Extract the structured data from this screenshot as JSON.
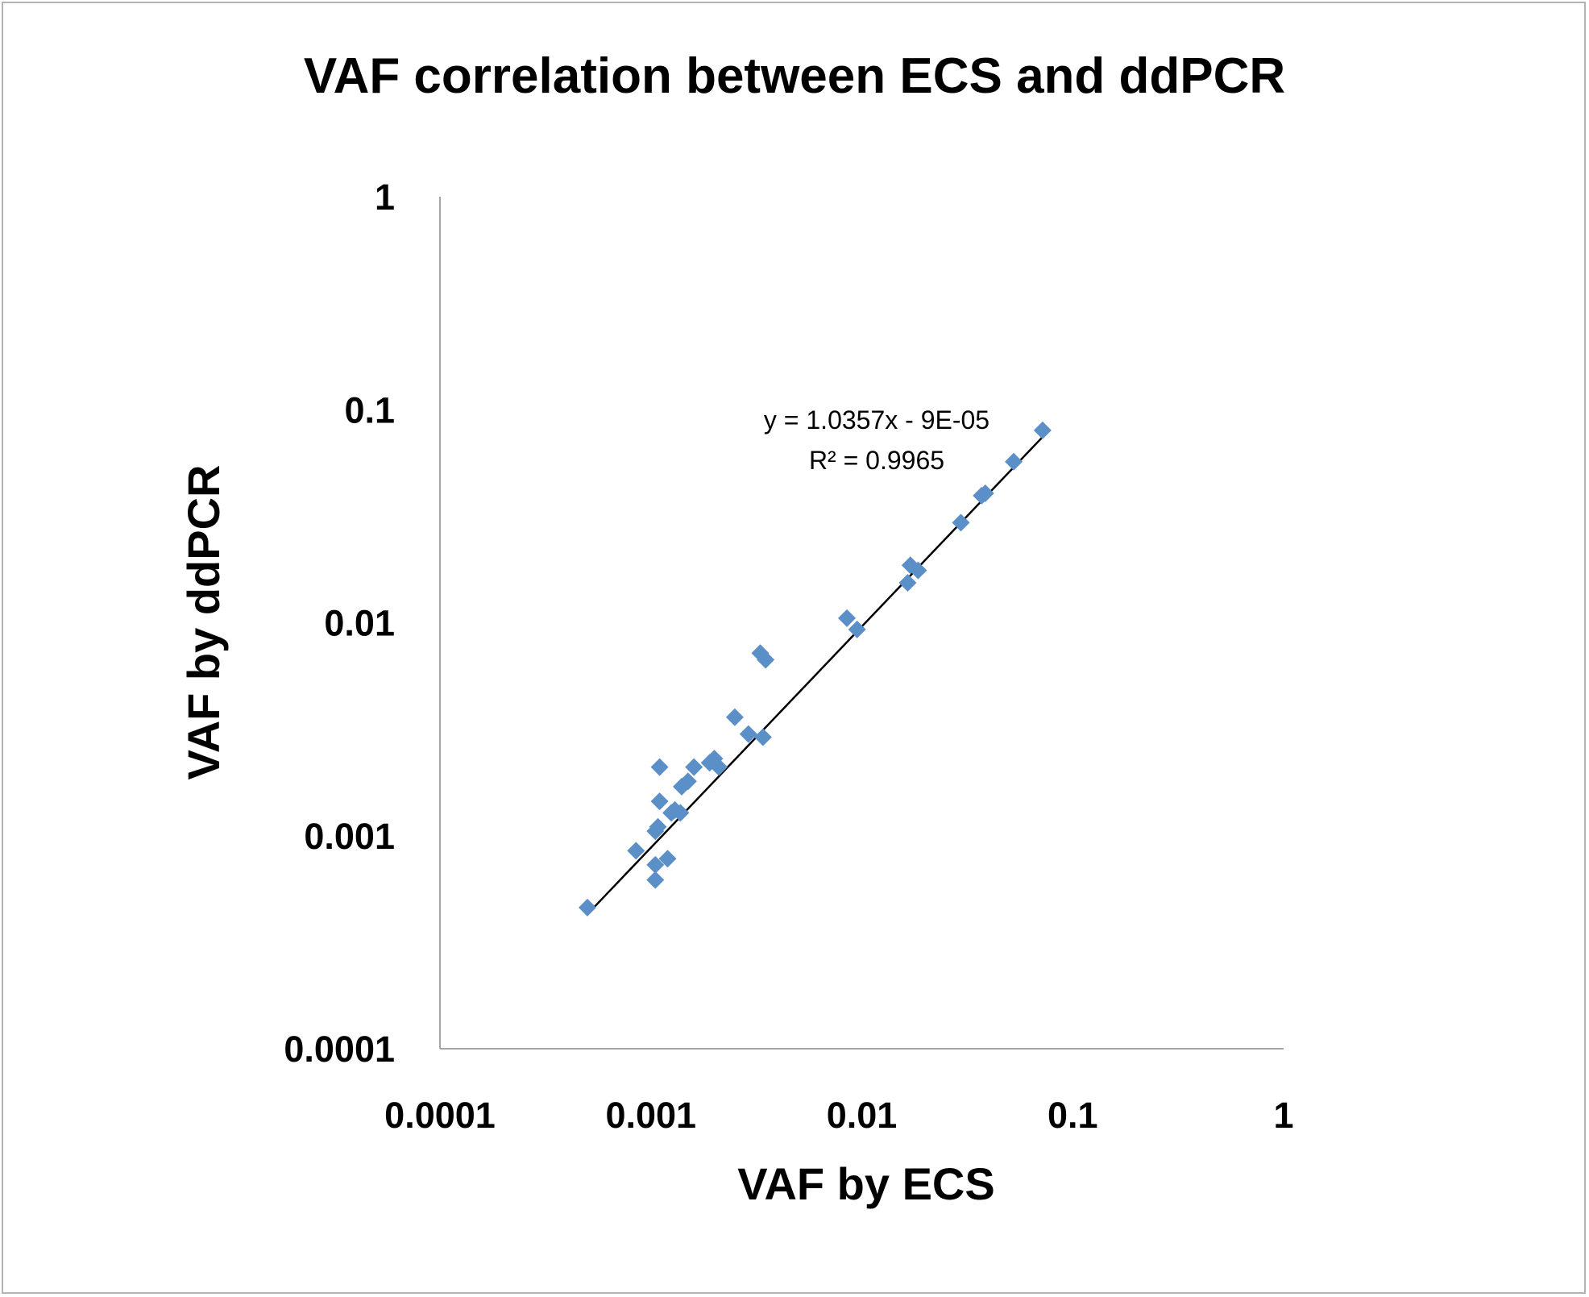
{
  "chart_data": {
    "type": "scatter",
    "title": "VAF correlation between ECS and ddPCR",
    "xlabel": "VAF by ECS",
    "ylabel": "VAF by ddPCR",
    "xscale": "log",
    "yscale": "log",
    "xlim": [
      0.0001,
      1
    ],
    "ylim": [
      0.0001,
      1
    ],
    "x_ticks": [
      0.0001,
      0.001,
      0.01,
      0.1,
      1
    ],
    "x_tick_labels": [
      "0.0001",
      "0.001",
      "0.01",
      "0.1",
      "1"
    ],
    "y_ticks": [
      0.0001,
      0.001,
      0.01,
      0.1,
      1
    ],
    "y_tick_labels": [
      "0.0001",
      "0.001",
      "0.01",
      "0.1",
      "1"
    ],
    "grid": false,
    "marker": "diamond",
    "marker_color": "#5b8fc7",
    "series": [
      {
        "name": "VAF",
        "points": [
          [
            0.0005,
            0.00046
          ],
          [
            0.00085,
            0.00085
          ],
          [
            0.00105,
            0.00062
          ],
          [
            0.00105,
            0.00073
          ],
          [
            0.0012,
            0.00078
          ],
          [
            0.00105,
            0.00105
          ],
          [
            0.00108,
            0.0011
          ],
          [
            0.00125,
            0.00128
          ],
          [
            0.0013,
            0.00132
          ],
          [
            0.00138,
            0.00128
          ],
          [
            0.0011,
            0.00145
          ],
          [
            0.0014,
            0.0017
          ],
          [
            0.0015,
            0.0018
          ],
          [
            0.0016,
            0.0021
          ],
          [
            0.0011,
            0.0021
          ],
          [
            0.0019,
            0.0022
          ],
          [
            0.002,
            0.0023
          ],
          [
            0.0021,
            0.0021
          ],
          [
            0.0025,
            0.0036
          ],
          [
            0.0029,
            0.003
          ],
          [
            0.0034,
            0.0029
          ],
          [
            0.0033,
            0.0072
          ],
          [
            0.0035,
            0.0067
          ],
          [
            0.0085,
            0.0105
          ],
          [
            0.0095,
            0.0093
          ],
          [
            0.0165,
            0.0154
          ],
          [
            0.017,
            0.0186
          ],
          [
            0.0185,
            0.0176
          ],
          [
            0.0295,
            0.0295
          ],
          [
            0.037,
            0.0395
          ],
          [
            0.0385,
            0.0405
          ],
          [
            0.0525,
            0.057
          ],
          [
            0.072,
            0.08
          ]
        ]
      }
    ],
    "trendline": {
      "type": "linear",
      "slope": 1.0357,
      "intercept": -9e-05,
      "x_range": [
        0.0005,
        0.072
      ],
      "color": "#000000",
      "equation_text": "y = 1.0357x - 9E-05",
      "r2_text": "R² = 0.9965"
    }
  }
}
